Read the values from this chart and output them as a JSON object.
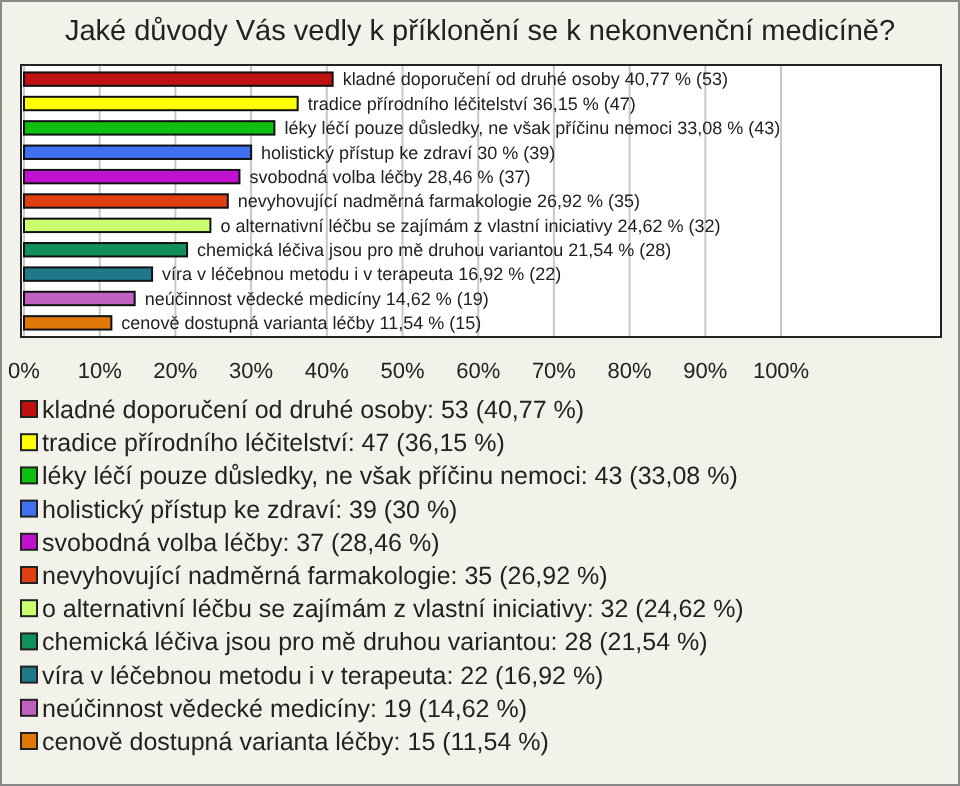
{
  "chart_data": {
    "type": "bar",
    "orientation": "horizontal",
    "title": "Jaké důvody Vás vedly k příklonění se k nekonvenční medicíně?",
    "categories": [
      "kladné doporučení od druhé osoby",
      "tradice přírodního léčitelství",
      "léky léčí pouze důsledky, ne však příčinu nemoci",
      "holistický přístup ke zdraví",
      "svobodná volba léčby",
      "nevyhovující nadměrná farmakologie",
      "o alternativní léčbu se zajímám z vlastní iniciativy",
      "chemická léčiva jsou pro mě druhou variantou",
      "víra v léčebnou metodu i v terapeuta",
      "neúčinnost vědecké medicíny",
      "cenově dostupná varianta léčby"
    ],
    "values": [
      40.77,
      36.15,
      33.08,
      30,
      28.46,
      26.92,
      24.62,
      21.54,
      16.92,
      14.62,
      11.54
    ],
    "value_labels": [
      "40,77 % (53)",
      "36,15 % (47)",
      "33,08 % (43)",
      "30 % (39)",
      "28,46 % (37)",
      "26,92 % (35)",
      "24,62 % (32)",
      "21,54 % (28)",
      "16,92 % (22)",
      "14,62 % (19)",
      "11,54 % (15)"
    ],
    "colors": [
      "#c01010",
      "#ffff00",
      "#10c010",
      "#4070f0",
      "#c010d0",
      "#e04010",
      "#ccff70",
      "#10905a",
      "#207888",
      "#c060c0",
      "#e07808"
    ],
    "xlim": [
      0,
      121
    ],
    "xticks": [
      {
        "value": 0,
        "label": "0%"
      },
      {
        "value": 10,
        "label": "10%"
      },
      {
        "value": 20,
        "label": "20%"
      },
      {
        "value": 30,
        "label": "30%"
      },
      {
        "value": 40,
        "label": "40%"
      },
      {
        "value": 50,
        "label": "50%"
      },
      {
        "value": 60,
        "label": "60%"
      },
      {
        "value": 70,
        "label": "70%"
      },
      {
        "value": 80,
        "label": "80%"
      },
      {
        "value": 90,
        "label": "90%"
      },
      {
        "value": 100,
        "label": "100%"
      }
    ],
    "grid": "x",
    "tick_labels": "x",
    "annotations": [
      "kladné doporučení od druhé osoby: 53 (40,77 %)",
      "tradice přírodního léčitelství: 47 (36,15 %)",
      "léky léčí pouze důsledky, ne však příčinu nemoci: 43 (33,08 %)",
      "holistický přístup ke zdraví: 39 (30 %)",
      "svobodná volba léčby: 37 (28,46 %)",
      "nevyhovující nadměrná farmakologie: 35 (26,92 %)",
      "o alternativní léčbu se zajímám z vlastní iniciativy: 32 (24,62 %)",
      "chemická léčiva jsou pro mě druhou variantou: 28 (21,54 %)",
      "víra v léčebnou metodu i v terapeuta: 22 (16,92 %)",
      "neúčinnost vědecké medicíny: 19 (14,62 %)",
      "cenově dostupná varianta léčby: 15 (11,54 %)"
    ]
  }
}
